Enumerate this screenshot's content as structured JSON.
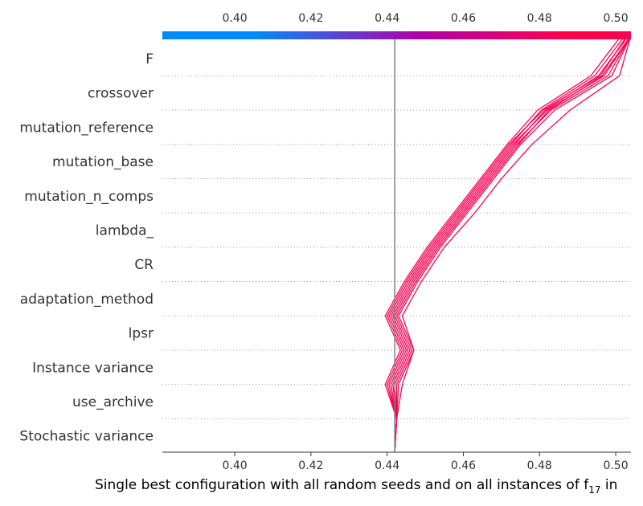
{
  "chart_data": {
    "type": "line",
    "subtype": "shap-decision-plot",
    "xlabel": "Single best configuration with all random seeds and on all instances of f",
    "xlabel_subscript": "17",
    "xlabel_suffix": " in",
    "xlim": [
      0.381,
      0.504
    ],
    "xticks": [
      "0.40",
      "0.42",
      "0.44",
      "0.46",
      "0.48",
      "0.50"
    ],
    "xtick_values": [
      0.4,
      0.42,
      0.44,
      0.46,
      0.48,
      0.5
    ],
    "base_value": 0.442,
    "features": [
      "F",
      "crossover",
      "mutation_reference",
      "mutation_base",
      "mutation_n_comps",
      "lambda_",
      "CR",
      "adaptation_method",
      "lpsr",
      "Instance variance",
      "use_archive",
      "Stochastic variance"
    ],
    "colorbar": {
      "from": "#008bfb",
      "mid": "#b000a8",
      "to": "#ff0051"
    },
    "line_color": "#ff0051",
    "grid": "dotted-horizontal",
    "series_points_bottom_to_top": [
      [
        0.442,
        0.4425,
        0.44,
        0.444,
        0.44,
        0.445,
        0.451,
        0.458,
        0.465,
        0.472,
        0.481,
        0.496,
        0.503
      ],
      [
        0.442,
        0.4425,
        0.441,
        0.445,
        0.441,
        0.446,
        0.452,
        0.459,
        0.466,
        0.473,
        0.482,
        0.497,
        0.504
      ],
      [
        0.442,
        0.4425,
        0.442,
        0.446,
        0.442,
        0.447,
        0.453,
        0.46,
        0.467,
        0.474,
        0.483,
        0.498,
        0.504
      ],
      [
        0.442,
        0.4425,
        0.443,
        0.447,
        0.443,
        0.448,
        0.454,
        0.461,
        0.468,
        0.475,
        0.484,
        0.499,
        0.504
      ],
      [
        0.442,
        0.4425,
        0.4395,
        0.4435,
        0.4395,
        0.4445,
        0.4505,
        0.4575,
        0.4645,
        0.4715,
        0.4795,
        0.4935,
        0.5015
      ],
      [
        0.442,
        0.4425,
        0.4405,
        0.4445,
        0.4405,
        0.4455,
        0.4515,
        0.4585,
        0.4655,
        0.4725,
        0.4805,
        0.4945,
        0.5025
      ],
      [
        0.442,
        0.4425,
        0.4415,
        0.4455,
        0.4415,
        0.4465,
        0.4525,
        0.4595,
        0.4665,
        0.4735,
        0.4815,
        0.4955,
        0.5035
      ],
      [
        0.442,
        0.4425,
        0.4425,
        0.4465,
        0.4425,
        0.4475,
        0.4535,
        0.4605,
        0.4675,
        0.4745,
        0.4825,
        0.4965,
        0.504
      ],
      [
        0.442,
        0.4425,
        0.444,
        0.447,
        0.444,
        0.449,
        0.455,
        0.463,
        0.47,
        0.478,
        0.488,
        0.501,
        0.504
      ]
    ]
  }
}
